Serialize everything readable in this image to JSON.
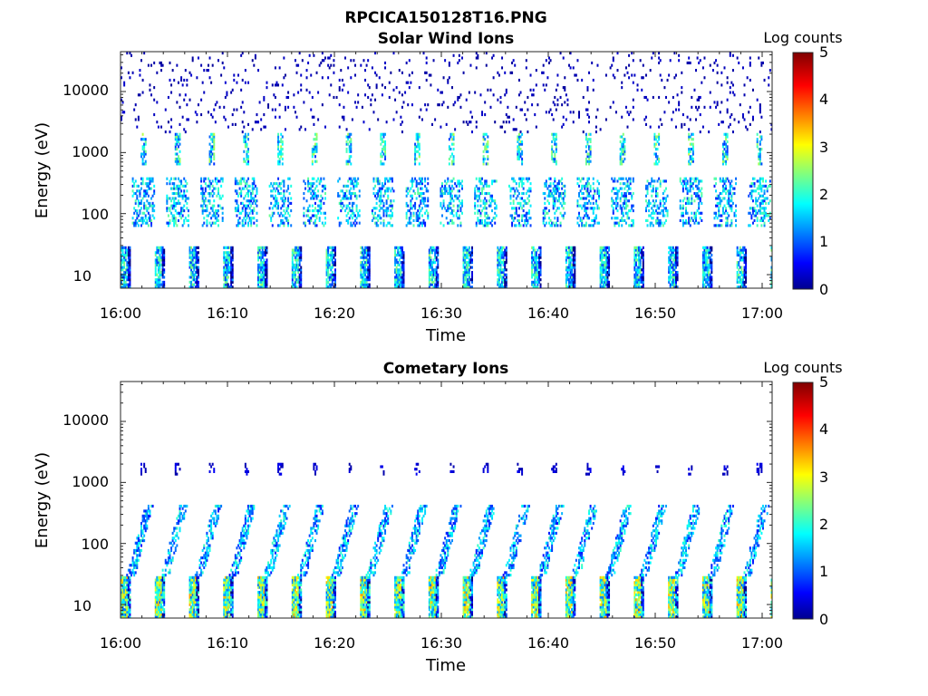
{
  "figure": {
    "title": "RPCICA150128T16.PNG"
  },
  "chart_data": [
    {
      "type": "heatmap",
      "title": "Solar Wind Ions",
      "xlabel": "Time",
      "ylabel": "Energy (eV)",
      "xlim": [
        "16:00",
        "17:01"
      ],
      "ylim": [
        6,
        45000
      ],
      "yscale": "log",
      "xticks": [
        "16:00",
        "16:10",
        "16:20",
        "16:30",
        "16:40",
        "16:50",
        "17:00"
      ],
      "yticks": [
        "10",
        "100",
        "1000",
        "10000"
      ],
      "colorbar": {
        "label": "Log counts",
        "range": [
          0,
          5
        ],
        "ticks": [
          "0",
          "1",
          "2",
          "3",
          "4",
          "5"
        ],
        "colormap": "jet"
      },
      "scan_period_minutes": 3.2,
      "bands": [
        {
          "name": "low",
          "energy_range": [
            6,
            30
          ],
          "peak_log_counts": 2.6,
          "coverage": 0.8
        },
        {
          "name": "mid",
          "energy_range": [
            60,
            400
          ],
          "peak_log_counts": 2.4,
          "coverage": 0.45
        },
        {
          "name": "line",
          "energy_range": [
            600,
            2000
          ],
          "peak_log_counts": 2.8,
          "coverage": 0.55
        },
        {
          "name": "high",
          "energy_range": [
            2000,
            45000
          ],
          "peak_log_counts": 0.4,
          "coverage": 0.05
        }
      ]
    },
    {
      "type": "heatmap",
      "title": "Cometary Ions",
      "xlabel": "Time",
      "ylabel": "Energy (eV)",
      "xlim": [
        "16:00",
        "17:01"
      ],
      "ylim": [
        6,
        45000
      ],
      "yscale": "log",
      "xticks": [
        "16:00",
        "16:10",
        "16:20",
        "16:30",
        "16:40",
        "16:50",
        "17:00"
      ],
      "yticks": [
        "10",
        "100",
        "1000",
        "10000"
      ],
      "colorbar": {
        "label": "Log counts",
        "range": [
          0,
          5
        ],
        "ticks": [
          "0",
          "1",
          "2",
          "3",
          "4",
          "5"
        ],
        "colormap": "jet"
      },
      "scan_period_minutes": 3.2,
      "bands": [
        {
          "name": "low",
          "energy_range": [
            6,
            30
          ],
          "peak_log_counts": 3.6,
          "coverage": 0.95
        },
        {
          "name": "plume",
          "energy_range": [
            30,
            450
          ],
          "peak_log_counts": 2.2,
          "coverage": 0.55
        },
        {
          "name": "line",
          "energy_range": [
            1300,
            2000
          ],
          "peak_log_counts": 0.6,
          "coverage": 0.35
        }
      ]
    }
  ]
}
